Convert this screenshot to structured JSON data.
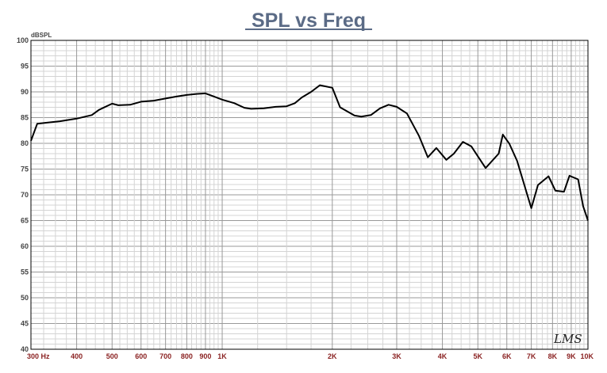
{
  "chart_data": {
    "type": "line",
    "title": "SPL vs Freq",
    "ylabel": "dBSPL",
    "xscale": "log",
    "xlim": [
      300,
      10000
    ],
    "ylim": [
      40,
      100
    ],
    "y_ticks": [
      "100",
      "95",
      "90",
      "85",
      "80",
      "75",
      "70",
      "65",
      "60",
      "55",
      "50",
      "45",
      "40"
    ],
    "x_ticks": [
      {
        "value": 300,
        "label": "300 Hz"
      },
      {
        "value": 400,
        "label": "400"
      },
      {
        "value": 500,
        "label": "500"
      },
      {
        "value": 600,
        "label": "600"
      },
      {
        "value": 700,
        "label": "700"
      },
      {
        "value": 800,
        "label": "800"
      },
      {
        "value": 900,
        "label": "900"
      },
      {
        "value": 1000,
        "label": "1K"
      },
      {
        "value": 2000,
        "label": "2K"
      },
      {
        "value": 3000,
        "label": "3K"
      },
      {
        "value": 4000,
        "label": "4K"
      },
      {
        "value": 5000,
        "label": "5K"
      },
      {
        "value": 6000,
        "label": "6K"
      },
      {
        "value": 7000,
        "label": "7K"
      },
      {
        "value": 8000,
        "label": "8K"
      },
      {
        "value": 9000,
        "label": "9K"
      },
      {
        "value": 10000,
        "label": "10K"
      }
    ],
    "grid": true,
    "series": [
      {
        "color": "#000000",
        "x": [
          300,
          312,
          330,
          360,
          400,
          440,
          460,
          500,
          520,
          560,
          600,
          650,
          700,
          750,
          800,
          850,
          900,
          950,
          1000,
          1080,
          1150,
          1200,
          1300,
          1400,
          1500,
          1580,
          1650,
          1750,
          1850,
          2000,
          2100,
          2300,
          2400,
          2550,
          2700,
          2850,
          3000,
          3200,
          3450,
          3650,
          3850,
          4100,
          4300,
          4550,
          4800,
          5000,
          5250,
          5700,
          5850,
          6100,
          6400,
          7000,
          7300,
          7800,
          8150,
          8600,
          8900,
          9400,
          9700,
          10000
        ],
        "y": [
          80.5,
          83.8,
          84.0,
          84.3,
          84.8,
          85.5,
          86.5,
          87.7,
          87.4,
          87.5,
          88.1,
          88.3,
          88.7,
          89.1,
          89.4,
          89.6,
          89.7,
          89.1,
          88.5,
          87.8,
          86.9,
          86.7,
          86.8,
          87.1,
          87.2,
          87.8,
          88.9,
          90.0,
          91.3,
          90.8,
          87.0,
          85.4,
          85.2,
          85.5,
          86.8,
          87.5,
          87.1,
          85.8,
          81.5,
          77.3,
          79.1,
          76.8,
          78.0,
          80.3,
          79.4,
          77.5,
          75.2,
          78.0,
          81.7,
          79.9,
          76.6,
          67.4,
          71.9,
          73.6,
          70.8,
          70.6,
          73.7,
          73.0,
          67.8,
          65.0
        ]
      }
    ]
  },
  "logo_text": "LMS"
}
